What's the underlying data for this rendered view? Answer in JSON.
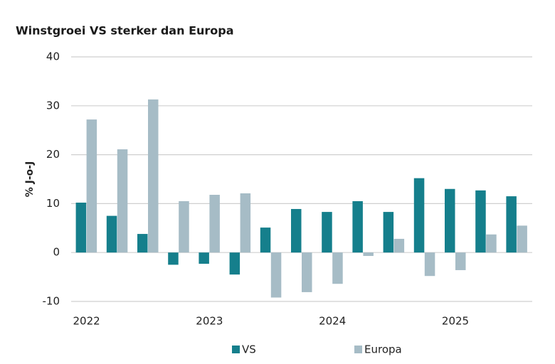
{
  "chart_data": {
    "type": "bar",
    "title": "Winstgroei VS sterker dan Europa",
    "y_label": "% J-o-J",
    "categories": [
      "2022",
      null,
      null,
      null,
      "2023",
      null,
      null,
      null,
      "2024",
      null,
      null,
      null,
      "2025",
      null,
      null
    ],
    "series": [
      {
        "name": "VS",
        "color": "#157f8c",
        "values": [
          10.2,
          7.5,
          3.8,
          -2.5,
          -2.3,
          -4.5,
          5.1,
          8.9,
          8.3,
          10.5,
          8.3,
          15.2,
          13.0,
          12.7,
          11.5
        ]
      },
      {
        "name": "Europa",
        "color": "#a6bcc6",
        "values": [
          27.2,
          21.1,
          31.3,
          10.5,
          11.8,
          12.1,
          -9.2,
          -8.1,
          -6.4,
          -0.7,
          2.8,
          -4.8,
          -3.6,
          3.7,
          5.5
        ]
      }
    ],
    "ylim": [
      -10,
      40
    ],
    "yticks": [
      -10,
      0,
      10,
      20,
      30,
      40
    ],
    "grid": true,
    "legend": "bottom"
  }
}
